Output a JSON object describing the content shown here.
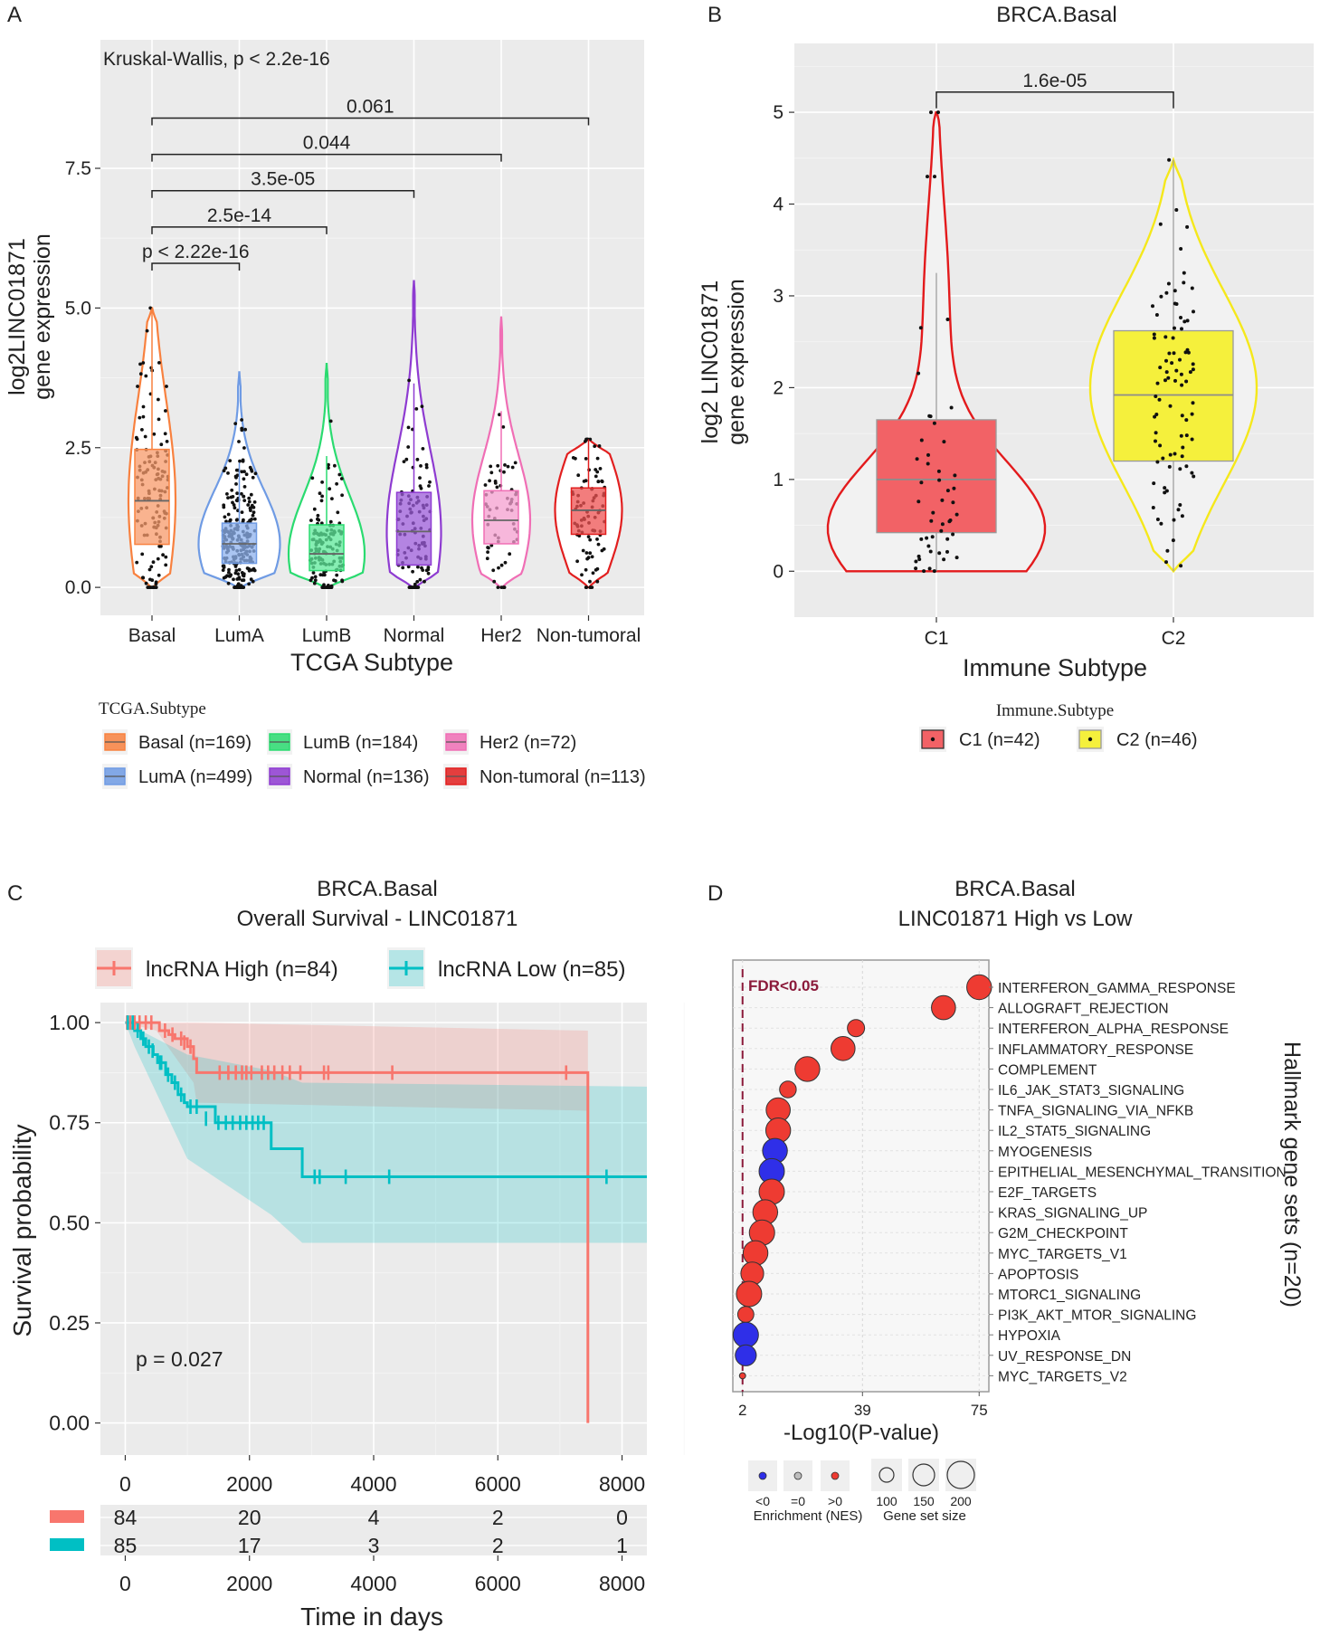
{
  "chart_data": [
    {
      "panel": "A",
      "type": "violin",
      "title": "",
      "xlabel": "TCGA Subtype",
      "ylabel_line1": "log2LINC01871",
      "ylabel_line2": "gene expression",
      "annotation": "Kruskal-Wallis, p < 2.2e-16",
      "ylim": [
        -0.5,
        9.8
      ],
      "yticks": [
        0.0,
        2.5,
        5.0,
        7.5
      ],
      "ytick_labels": [
        "0.0",
        "2.5",
        "5.0",
        "7.5"
      ],
      "categories": [
        "Basal",
        "LumA",
        "LumB",
        "Normal",
        "Her2",
        "Non-tumoral"
      ],
      "colors": [
        "#F8813F",
        "#6F9BE4",
        "#2ADB70",
        "#8E3BD1",
        "#F06EB5",
        "#E21F1F"
      ],
      "fills": [
        "#F79A6A",
        "#8DB1EE",
        "#5DE89A",
        "#9B5BD8",
        "#F49FCF",
        "#EE5252"
      ],
      "box": [
        {
          "q1": 0.77,
          "median": 1.55,
          "q3": 2.47,
          "max": 5.0
        },
        {
          "q1": 0.43,
          "median": 0.78,
          "q3": 1.15,
          "max": 3.85
        },
        {
          "q1": 0.3,
          "median": 0.6,
          "q3": 1.12,
          "max": 4.0
        },
        {
          "q1": 0.4,
          "median": 1.0,
          "q3": 1.7,
          "max": 5.5
        },
        {
          "q1": 0.78,
          "median": 1.2,
          "q3": 1.73,
          "max": 4.85
        },
        {
          "q1": 0.95,
          "median": 1.38,
          "q3": 1.78,
          "max": 2.65
        }
      ],
      "comparisons": [
        {
          "from": "Basal",
          "to": "LumA",
          "label": "p < 2.22e-16",
          "y": 5.8
        },
        {
          "from": "Basal",
          "to": "LumB",
          "label": "2.5e-14",
          "y": 6.45
        },
        {
          "from": "Basal",
          "to": "Normal",
          "label": "3.5e-05",
          "y": 7.1
        },
        {
          "from": "Basal",
          "to": "Her2",
          "label": "0.044",
          "y": 7.75
        },
        {
          "from": "Basal",
          "to": "Non-tumoral",
          "label": "0.061",
          "y": 8.4
        }
      ],
      "legend_title": "TCGA.Subtype",
      "legend": [
        "Basal (n=169)",
        "LumB (n=184)",
        "Her2 (n=72)",
        "LumA (n=499)",
        "Normal (n=136)",
        "Non-tumoral (n=113)"
      ],
      "legend_colors": [
        "#F8813F",
        "#2ADB70",
        "#F06EB5",
        "#6F9BE4",
        "#8E3BD1",
        "#E21F1F"
      ]
    },
    {
      "panel": "B",
      "type": "violin",
      "title": "BRCA.Basal",
      "xlabel": "Immune Subtype",
      "ylabel_line1": "log2 LINC01871",
      "ylabel_line2": "gene expression",
      "ylim": [
        -0.5,
        5.75
      ],
      "yticks": [
        0,
        1,
        2,
        3,
        4,
        5
      ],
      "ytick_labels": [
        "0",
        "1",
        "2",
        "3",
        "4",
        "5"
      ],
      "categories": [
        "C1",
        "C2"
      ],
      "colors": [
        "#E31A1C",
        "#F5E81B"
      ],
      "fills": [
        "#F26266",
        "#F5F03C"
      ],
      "box": [
        {
          "q1": 0.42,
          "median": 1.0,
          "q3": 1.65,
          "max": 3.25
        },
        {
          "q1": 1.2,
          "median": 1.92,
          "q3": 2.62,
          "max": 4.48
        }
      ],
      "comparison": {
        "label": "1.6e-05",
        "y": 5.22
      },
      "legend_title": "Immune.Subtype",
      "legend": [
        "C1 (n=42)",
        "C2 (n=46)"
      ]
    },
    {
      "panel": "C",
      "type": "line",
      "title_line1": "BRCA.Basal",
      "title_line2": "Overall Survival - LINC01871",
      "xlabel": "Time in days",
      "ylabel": "Survival probability",
      "xlim": [
        -400,
        8400
      ],
      "ylim": [
        -0.08,
        1.05
      ],
      "xticks": [
        0,
        2000,
        4000,
        6000,
        8000
      ],
      "xtick_labels": [
        "0",
        "2000",
        "4000",
        "6000",
        "8000"
      ],
      "yticks": [
        0.0,
        0.25,
        0.5,
        0.75,
        1.0
      ],
      "ytick_labels": [
        "0.00",
        "0.25",
        "0.50",
        "0.75",
        "1.00"
      ],
      "annotation": "p = 0.027",
      "series": [
        {
          "name": "lncRNA High (n=84)",
          "color": "#F8766D",
          "steps": [
            [
              0,
              1.0
            ],
            [
              500,
              1.0
            ],
            [
              550,
              0.98
            ],
            [
              700,
              0.97
            ],
            [
              800,
              0.96
            ],
            [
              1000,
              0.94
            ],
            [
              1100,
              0.91
            ],
            [
              1150,
              0.875
            ],
            [
              7450,
              0.875
            ],
            [
              7450,
              0.0
            ]
          ],
          "ci_upper": [
            [
              0,
              1.0
            ],
            [
              1150,
              1.0
            ],
            [
              7450,
              0.98
            ]
          ],
          "ci_lower": [
            [
              0,
              1.0
            ],
            [
              500,
              0.98
            ],
            [
              1100,
              0.85
            ],
            [
              1150,
              0.8
            ],
            [
              7450,
              0.78
            ]
          ],
          "censors": [
            [
              30,
              1.0
            ],
            [
              80,
              1.0
            ],
            [
              150,
              1.0
            ],
            [
              230,
              1.0
            ],
            [
              330,
              1.0
            ],
            [
              420,
              1.0
            ],
            [
              640,
              0.98
            ],
            [
              760,
              0.97
            ],
            [
              900,
              0.96
            ],
            [
              950,
              0.95
            ],
            [
              1050,
              0.94
            ],
            [
              1520,
              0.875
            ],
            [
              1660,
              0.875
            ],
            [
              1780,
              0.875
            ],
            [
              1880,
              0.875
            ],
            [
              1950,
              0.875
            ],
            [
              2030,
              0.875
            ],
            [
              2200,
              0.875
            ],
            [
              2300,
              0.875
            ],
            [
              2400,
              0.875
            ],
            [
              2530,
              0.875
            ],
            [
              2650,
              0.875
            ],
            [
              2820,
              0.875
            ],
            [
              3200,
              0.875
            ],
            [
              3270,
              0.875
            ],
            [
              4300,
              0.875
            ],
            [
              7100,
              0.875
            ]
          ]
        },
        {
          "name": "lncRNA Low (n=85)",
          "color": "#00BFC4",
          "steps": [
            [
              0,
              1.0
            ],
            [
              150,
              1.0
            ],
            [
              150,
              0.98
            ],
            [
              250,
              0.96
            ],
            [
              330,
              0.94
            ],
            [
              450,
              0.92
            ],
            [
              520,
              0.9
            ],
            [
              650,
              0.87
            ],
            [
              750,
              0.85
            ],
            [
              850,
              0.82
            ],
            [
              950,
              0.8
            ],
            [
              1000,
              0.79
            ],
            [
              1450,
              0.75
            ],
            [
              2350,
              0.75
            ],
            [
              2350,
              0.685
            ],
            [
              2850,
              0.685
            ],
            [
              2850,
              0.615
            ],
            [
              8400,
              0.615
            ]
          ],
          "ci_upper": [
            [
              0,
              1.0
            ],
            [
              1000,
              0.92
            ],
            [
              2350,
              0.88
            ],
            [
              2850,
              0.85
            ],
            [
              8400,
              0.84
            ]
          ],
          "ci_lower": [
            [
              0,
              1.0
            ],
            [
              150,
              0.94
            ],
            [
              1000,
              0.66
            ],
            [
              2350,
              0.52
            ],
            [
              2850,
              0.45
            ],
            [
              8400,
              0.45
            ]
          ],
          "censors": [
            [
              40,
              1.0
            ],
            [
              120,
              1.0
            ],
            [
              200,
              0.98
            ],
            [
              290,
              0.96
            ],
            [
              380,
              0.94
            ],
            [
              440,
              0.93
            ],
            [
              560,
              0.9
            ],
            [
              580,
              0.9
            ],
            [
              690,
              0.87
            ],
            [
              800,
              0.85
            ],
            [
              900,
              0.82
            ],
            [
              1050,
              0.79
            ],
            [
              1150,
              0.79
            ],
            [
              1300,
              0.76
            ],
            [
              1500,
              0.75
            ],
            [
              1620,
              0.75
            ],
            [
              1730,
              0.75
            ],
            [
              1850,
              0.75
            ],
            [
              1950,
              0.75
            ],
            [
              2050,
              0.75
            ],
            [
              2140,
              0.75
            ],
            [
              2230,
              0.75
            ],
            [
              3050,
              0.615
            ],
            [
              3130,
              0.615
            ],
            [
              3550,
              0.615
            ],
            [
              4250,
              0.615
            ],
            [
              7750,
              0.615
            ]
          ]
        }
      ],
      "risk_table": {
        "times": [
          0,
          2000,
          4000,
          6000,
          8000
        ],
        "high": [
          "84",
          "20",
          "4",
          "2",
          "0"
        ],
        "low": [
          "85",
          "17",
          "3",
          "2",
          "1"
        ]
      }
    },
    {
      "panel": "D",
      "type": "scatter",
      "title_line1": "BRCA.Basal",
      "title_line2": "LINC01871 High vs Low",
      "xlabel": "-Log10(P-value)",
      "ylabel": "Hallmark gene sets (n=20)",
      "xlim": [
        -1,
        78
      ],
      "xticks": [
        2,
        39,
        75
      ],
      "xtick_labels": [
        "2",
        "39",
        "75"
      ],
      "fdr_line_x": 2,
      "fdr_label": "FDR<0.05",
      "gene_sets": [
        {
          "name": "INTERFERON_GAMMA_RESPONSE",
          "x": 75,
          "size": 170,
          "nes": "pos"
        },
        {
          "name": "ALLOGRAFT_REJECTION",
          "x": 64,
          "size": 165,
          "nes": "pos"
        },
        {
          "name": "INTERFERON_ALPHA_RESPONSE",
          "x": 37,
          "size": 110,
          "nes": "pos"
        },
        {
          "name": "INFLAMMATORY_RESPONSE",
          "x": 33,
          "size": 165,
          "nes": "pos"
        },
        {
          "name": "COMPLEMENT",
          "x": 22,
          "size": 170,
          "nes": "pos"
        },
        {
          "name": "IL6_JAK_STAT3_SIGNALING",
          "x": 16,
          "size": 105,
          "nes": "pos"
        },
        {
          "name": "TNFA_SIGNALING_VIA_NFKB",
          "x": 13,
          "size": 165,
          "nes": "pos"
        },
        {
          "name": "IL2_STAT5_SIGNALING",
          "x": 13,
          "size": 170,
          "nes": "pos"
        },
        {
          "name": "MYOGENESIS",
          "x": 12,
          "size": 170,
          "nes": "neg"
        },
        {
          "name": "EPITHELIAL_MESENCHYMAL_TRANSITION",
          "x": 11,
          "size": 175,
          "nes": "neg"
        },
        {
          "name": "E2F_TARGETS",
          "x": 11,
          "size": 175,
          "nes": "pos"
        },
        {
          "name": "KRAS_SIGNALING_UP",
          "x": 9,
          "size": 170,
          "nes": "pos"
        },
        {
          "name": "G2M_CHECKPOINT",
          "x": 8,
          "size": 175,
          "nes": "pos"
        },
        {
          "name": "MYC_TARGETS_V1",
          "x": 6,
          "size": 170,
          "nes": "pos"
        },
        {
          "name": "APOPTOSIS",
          "x": 5,
          "size": 155,
          "nes": "pos"
        },
        {
          "name": "MTORC1_SIGNALING",
          "x": 4,
          "size": 175,
          "nes": "pos"
        },
        {
          "name": "PI3K_AKT_MTOR_SIGNALING",
          "x": 3,
          "size": 100,
          "nes": "pos"
        },
        {
          "name": "HYPOXIA",
          "x": 3,
          "size": 175,
          "nes": "neg"
        },
        {
          "name": "UV_RESPONSE_DN",
          "x": 3,
          "size": 140,
          "nes": "neg"
        },
        {
          "name": "MYC_TARGETS_V2",
          "x": 2,
          "size": 20,
          "nes": "pos"
        }
      ],
      "enrichment_legend": {
        "labels": [
          "<0",
          "=0",
          ">0"
        ],
        "title": "Enrichment (NES)",
        "colors": [
          "#3B3BE0",
          "#BDBDBD",
          "#E8413A"
        ]
      },
      "size_legend": {
        "labels": [
          "100",
          "150",
          "200"
        ],
        "title": "Gene set size"
      }
    }
  ],
  "panel_labels": [
    "A",
    "B",
    "C",
    "D"
  ]
}
